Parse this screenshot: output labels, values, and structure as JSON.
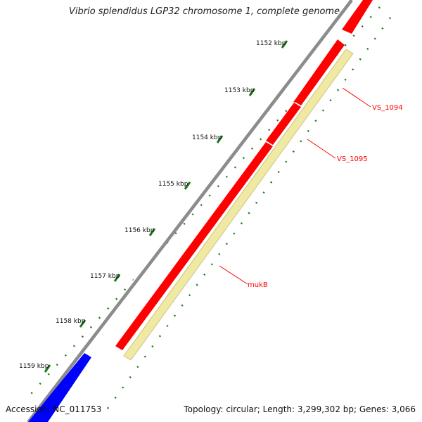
{
  "title": "Vibrio splendidus LGP32 chromosome 1, complete genome",
  "accession": "Accession: NC_011753",
  "summary": "Topology: circular; Length: 3,299,302 bp; Genes: 3,066",
  "ticks": [
    "1152 kbp",
    "1153 kbp",
    "1154 kbp",
    "1155 kbp",
    "1156 kbp",
    "1157 kbp",
    "1158 kbp",
    "1159 kbp"
  ],
  "genes": [
    {
      "label": "VS_1094",
      "color": "#ff0000"
    },
    {
      "label": "VS_1095",
      "color": "#ff0000"
    },
    {
      "label": "mukB",
      "color": "#ff0000"
    }
  ],
  "colors": {
    "backbone": "#8c8c8c",
    "forward_gene": "#ff0000",
    "reverse_gene": "#0000ff",
    "cds_track": "#f0e9a4",
    "tick": "#1a7a1a",
    "label_line": "#ff0000"
  }
}
